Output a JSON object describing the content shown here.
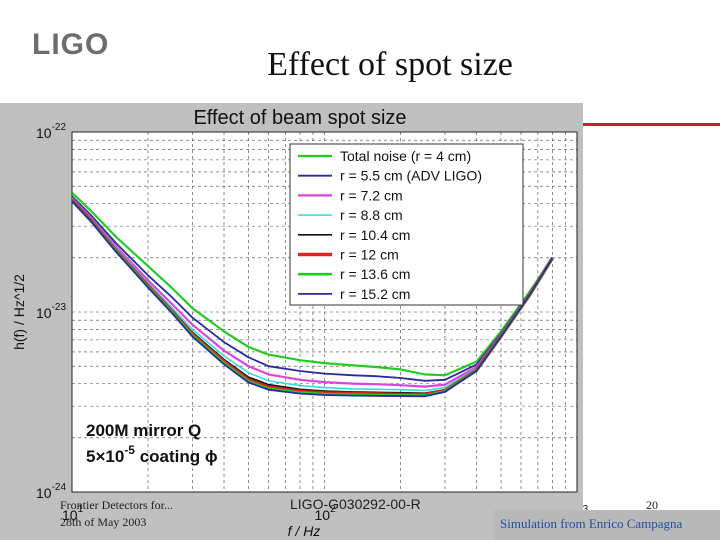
{
  "slide": {
    "logo": "LIGO",
    "title": "Effect of spot size",
    "footer_left_1": "Frontier Detectors for...",
    "footer_left_2": "28th of May 2003",
    "footer_center": "LIGO-G030292-00-R",
    "page_number": "20",
    "credit": "Simulation from Enrico Campagna",
    "accent_color": "#c4202a"
  },
  "chart_data": {
    "type": "line",
    "title": "Effect of beam spot size",
    "xlabel": "f / Hz",
    "ylabel": "h(f) / Hz^1/2",
    "xscale": "log",
    "yscale": "log",
    "xlim": [
      10,
      1000
    ],
    "ylim": [
      1e-24,
      1e-22
    ],
    "x_ticks": [
      {
        "base": "10",
        "exp": "1"
      },
      {
        "base": "10",
        "exp": "2"
      },
      {
        "base": "10",
        "exp": "3"
      }
    ],
    "y_ticks": [
      {
        "base": "10",
        "exp": "-24"
      },
      {
        "base": "10",
        "exp": "-23"
      },
      {
        "base": "10",
        "exp": "-22"
      }
    ],
    "grid": true,
    "legend_position": "top-right",
    "annotation_line1": "200M mirror Q",
    "annotation_line2_base": "5×10",
    "annotation_line2_exp": "-5",
    "annotation_line2_rest": " coating ϕ",
    "x": [
      10,
      12,
      15,
      20,
      25,
      30,
      40,
      50,
      60,
      80,
      100,
      130,
      160,
      200,
      250,
      300,
      400,
      500,
      650,
      800
    ],
    "series": [
      {
        "name": "Total noise (r = 4 cm)",
        "color": "#22cc22",
        "values": [
          4.6e-23,
          3.6e-23,
          2.6e-23,
          1.8e-23,
          1.35e-23,
          1.05e-23,
          7.8e-24,
          6.4e-24,
          5.8e-24,
          5.4e-24,
          5.2e-24,
          5.05e-24,
          4.95e-24,
          4.8e-24,
          4.5e-24,
          4.45e-24,
          5.3e-24,
          7.8e-24,
          1.3e-23,
          2e-23
        ]
      },
      {
        "name": "r = 5.5 cm (ADV LIGO)",
        "color": "#2a2aa0",
        "values": [
          4.4e-23,
          3.4e-23,
          2.4e-23,
          1.6e-23,
          1.2e-23,
          9.3e-24,
          6.8e-24,
          5.6e-24,
          5e-24,
          4.7e-24,
          4.55e-24,
          4.45e-24,
          4.4e-24,
          4.3e-24,
          4.15e-24,
          4.2e-24,
          5.1e-24,
          7.6e-24,
          1.28e-23,
          2e-23
        ]
      },
      {
        "name": "r = 7.2 cm",
        "color": "#dd44dd",
        "values": [
          4.3e-23,
          3.3e-23,
          2.3e-23,
          1.5e-23,
          1.1e-23,
          8.5e-24,
          6.1e-24,
          5e-24,
          4.5e-24,
          4.2e-24,
          4.08e-24,
          4e-24,
          3.97e-24,
          3.92e-24,
          3.85e-24,
          3.95e-24,
          4.95e-24,
          7.5e-24,
          1.27e-23,
          2e-23
        ]
      },
      {
        "name": "r = 8.8 cm",
        "color": "#33dddd",
        "values": [
          4.25e-23,
          3.25e-23,
          2.25e-23,
          1.45e-23,
          1.05e-23,
          8e-24,
          5.7e-24,
          4.6e-24,
          4.15e-24,
          3.9e-24,
          3.8e-24,
          3.74e-24,
          3.72e-24,
          3.7e-24,
          3.66e-24,
          3.8e-24,
          4.85e-24,
          7.4e-24,
          1.26e-23,
          2e-23
        ]
      },
      {
        "name": "r = 10.4 cm",
        "color": "#111111",
        "values": [
          4.2e-23,
          3.2e-23,
          2.2e-23,
          1.42e-23,
          1.02e-23,
          7.7e-24,
          5.45e-24,
          4.35e-24,
          3.95e-24,
          3.72e-24,
          3.64e-24,
          3.6e-24,
          3.58e-24,
          3.56e-24,
          3.54e-24,
          3.7e-24,
          4.8e-24,
          7.4e-24,
          1.26e-23,
          2e-23
        ]
      },
      {
        "name": "r = 12 cm",
        "color": "#dd2222",
        "values": [
          4.18e-23,
          3.18e-23,
          2.18e-23,
          1.4e-23,
          1e-23,
          7.5e-24,
          5.3e-24,
          4.2e-24,
          3.82e-24,
          3.62e-24,
          3.55e-24,
          3.52e-24,
          3.5e-24,
          3.48e-24,
          3.47e-24,
          3.65e-24,
          4.75e-24,
          7.35e-24,
          1.25e-23,
          2e-23
        ]
      },
      {
        "name": "r = 13.6 cm",
        "color": "#22cc22",
        "values": [
          4.16e-23,
          3.16e-23,
          2.16e-23,
          1.38e-23,
          9.9e-24,
          7.4e-24,
          5.2e-24,
          4.12e-24,
          3.75e-24,
          3.56e-24,
          3.5e-24,
          3.47e-24,
          3.45e-24,
          3.44e-24,
          3.43e-24,
          3.62e-24,
          4.73e-24,
          7.33e-24,
          1.25e-23,
          2e-23
        ]
      },
      {
        "name": "r = 15.2 cm",
        "color": "#2a2aa0",
        "values": [
          4.15e-23,
          3.15e-23,
          2.15e-23,
          1.37e-23,
          9.8e-24,
          7.3e-24,
          5.12e-24,
          4.06e-24,
          3.7e-24,
          3.52e-24,
          3.46e-24,
          3.43e-24,
          3.42e-24,
          3.41e-24,
          3.4e-24,
          3.6e-24,
          4.72e-24,
          7.32e-24,
          1.25e-23,
          2e-23
        ]
      }
    ]
  }
}
